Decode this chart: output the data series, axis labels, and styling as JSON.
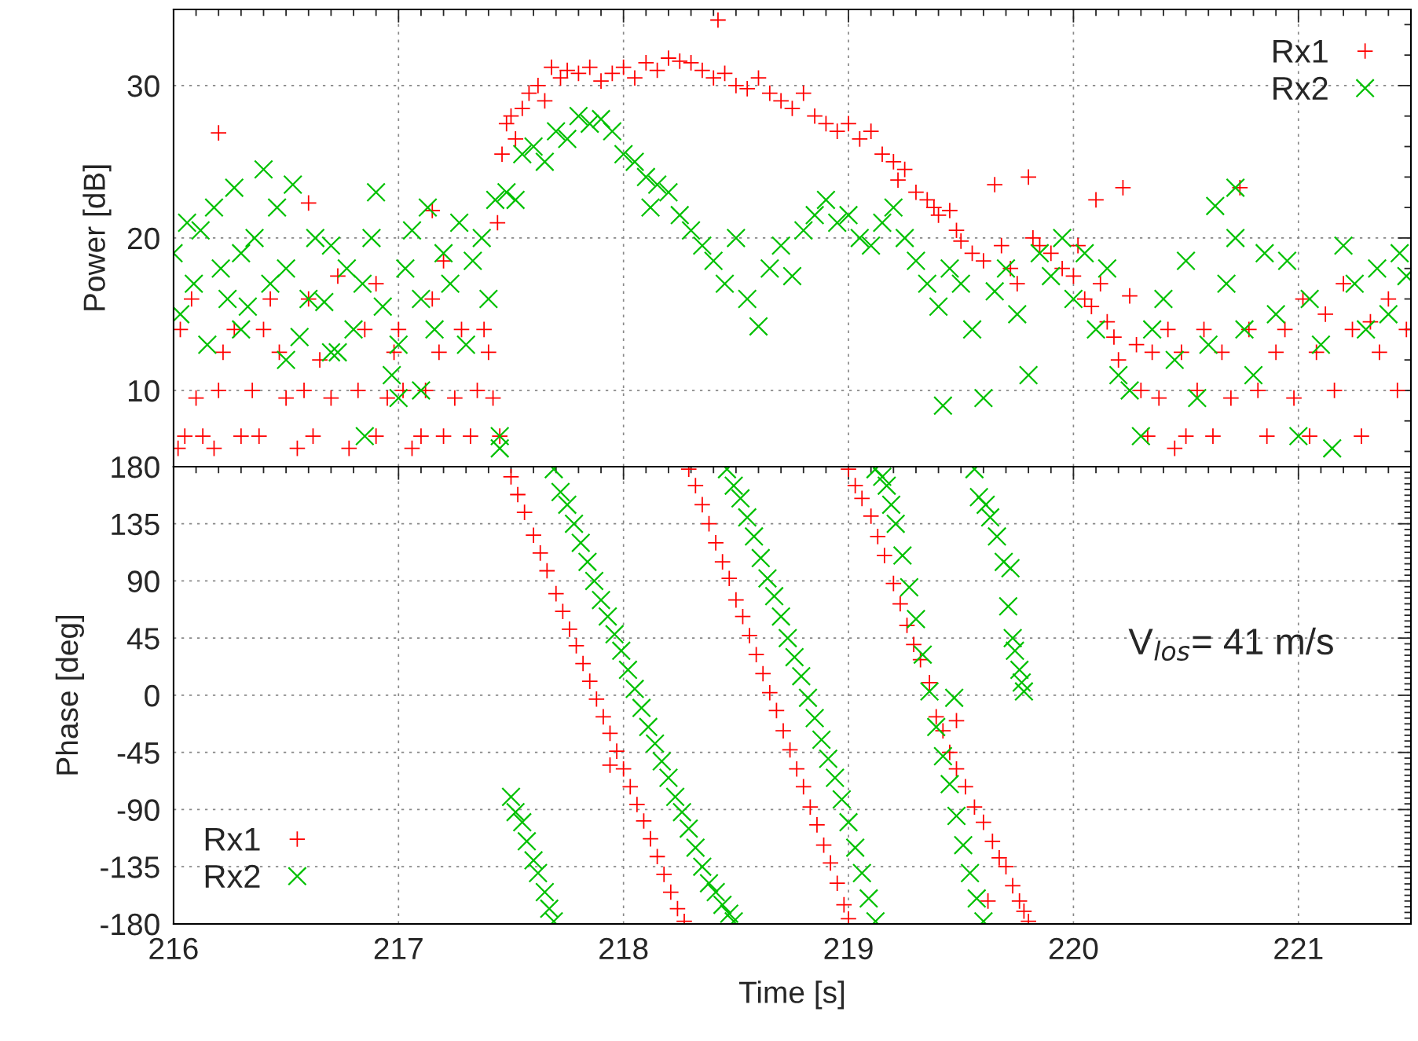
{
  "chart_data": [
    {
      "type": "scatter",
      "ylabel": "Power [dB]",
      "xlim": [
        216,
        221.5
      ],
      "xticks": [
        216,
        217,
        218,
        219,
        220,
        221
      ],
      "ylim": [
        5,
        35
      ],
      "yticks": [
        10,
        20,
        30
      ],
      "tick_labels": "y",
      "grid": true,
      "legend": "top right",
      "series": [
        {
          "name": "Rx1",
          "color": "#ff0000",
          "marker": "cross",
          "x": [
            216.02,
            216.05,
            216.1,
            216.13,
            216.18,
            216.2,
            216.22,
            216.27,
            216.3,
            216.35,
            216.38,
            216.43,
            216.47,
            216.5,
            216.55,
            216.58,
            216.62,
            216.65,
            216.7,
            216.73,
            216.78,
            216.82,
            216.85,
            216.9,
            216.95,
            216.98,
            217.02,
            217.06,
            217.1,
            217.12,
            217.15,
            217.18,
            217.2,
            217.25,
            217.28,
            217.32,
            217.35,
            217.38,
            217.4,
            217.42,
            217.45,
            216.03,
            216.08,
            216.4,
            216.6,
            217.0,
            216.2,
            216.6,
            217.15,
            216.9,
            217.2,
            217.44,
            217.46,
            217.48,
            217.5,
            217.52,
            217.55,
            217.58,
            217.62,
            217.65,
            217.68,
            217.72,
            217.75,
            217.8,
            217.85,
            217.9,
            217.95,
            218.0,
            218.05,
            218.1,
            218.15,
            218.2,
            218.25,
            218.3,
            218.35,
            218.4,
            218.42,
            218.45,
            218.5,
            218.55,
            218.6,
            218.65,
            218.7,
            218.75,
            218.8,
            218.85,
            218.9,
            218.95,
            219.0,
            219.05,
            219.1,
            219.15,
            219.2,
            219.22,
            219.25,
            219.3,
            219.35,
            219.38,
            219.4,
            219.45,
            219.48,
            219.5,
            219.55,
            219.6,
            219.65,
            219.68,
            219.72,
            219.75,
            219.8,
            219.82,
            219.85,
            219.9,
            219.95,
            220.0,
            220.02,
            220.05,
            220.08,
            220.1,
            220.12,
            220.15,
            220.18,
            220.2,
            220.22,
            220.25,
            220.28,
            220.3,
            220.33,
            220.35,
            220.38,
            220.42,
            220.45,
            220.48,
            220.5,
            220.55,
            220.58,
            220.62,
            220.66,
            220.7,
            220.74,
            220.78,
            220.82,
            220.86,
            220.9,
            220.94,
            220.98,
            221.02,
            221.05,
            221.08,
            221.12,
            221.16,
            221.2,
            221.24,
            221.28,
            221.32,
            221.36,
            221.4,
            221.44,
            221.48
          ],
          "values": [
            6.2,
            7,
            9.5,
            7,
            6.2,
            10,
            12.5,
            14,
            7,
            10,
            7,
            16,
            12.5,
            9.5,
            6.2,
            10,
            7,
            12,
            9.5,
            17.5,
            6.2,
            10,
            14,
            7,
            9.5,
            12.5,
            10,
            6.2,
            7,
            10,
            16,
            12.5,
            7,
            9.5,
            14,
            7,
            10,
            14,
            12.5,
            9.5,
            7,
            14,
            16,
            14,
            16,
            14,
            26.9,
            22.3,
            21.8,
            17,
            18.5,
            21,
            25.5,
            27.5,
            28,
            26.5,
            28.5,
            29.5,
            30,
            29,
            31.2,
            30.5,
            31,
            30.8,
            31.2,
            30.3,
            30.8,
            31.2,
            30.5,
            31.5,
            31,
            31.8,
            31.6,
            31.5,
            31,
            30.5,
            34.3,
            30.8,
            30,
            29.8,
            30.5,
            29.5,
            29,
            28.5,
            29.5,
            28,
            27.5,
            27,
            27.5,
            26.5,
            27,
            25.5,
            25,
            23.8,
            24.5,
            23,
            22.5,
            22,
            21.5,
            21.8,
            20.5,
            19.8,
            19,
            18.5,
            23.5,
            19.5,
            18,
            17,
            24,
            20,
            19.5,
            19,
            18,
            17.5,
            19.5,
            16,
            15.5,
            22.5,
            17,
            14.5,
            13.5,
            12,
            23.3,
            16.2,
            13,
            10,
            7,
            12.5,
            9.5,
            14,
            6.2,
            12.5,
            7,
            10,
            14,
            7,
            12.5,
            9.5,
            23.3,
            14,
            10,
            7,
            12.5,
            14,
            9.5,
            16,
            7,
            12.5,
            15,
            10,
            17,
            14,
            7,
            14.5,
            12.5,
            16,
            10,
            14
          ]
        },
        {
          "name": "Rx2",
          "color": "#00c000",
          "x": [
            216.0,
            216.03,
            216.06,
            216.09,
            216.12,
            216.15,
            216.18,
            216.21,
            216.24,
            216.27,
            216.3,
            216.33,
            216.36,
            216.4,
            216.43,
            216.46,
            216.5,
            216.53,
            216.56,
            216.6,
            216.63,
            216.67,
            216.7,
            216.73,
            216.77,
            216.8,
            216.84,
            216.88,
            216.9,
            216.93,
            216.97,
            217.0,
            217.03,
            217.06,
            217.1,
            217.13,
            217.16,
            217.2,
            217.23,
            217.27,
            217.3,
            217.33,
            217.37,
            217.4,
            217.43,
            217.45,
            217.45,
            216.85,
            217.1,
            216.5,
            216.3,
            217.0,
            216.7,
            217.48,
            217.52,
            217.55,
            217.6,
            217.65,
            217.7,
            217.75,
            217.8,
            217.85,
            217.9,
            217.95,
            218.0,
            218.05,
            218.1,
            218.12,
            218.15,
            218.2,
            218.25,
            218.3,
            218.35,
            218.4,
            218.45,
            218.5,
            218.55,
            218.6,
            218.65,
            218.7,
            218.75,
            218.8,
            218.85,
            218.9,
            218.95,
            219.0,
            219.05,
            219.1,
            219.15,
            219.2,
            219.25,
            219.3,
            219.35,
            219.4,
            219.42,
            219.45,
            219.5,
            219.55,
            219.6,
            219.65,
            219.7,
            219.75,
            219.8,
            219.85,
            219.9,
            219.95,
            220.0,
            220.05,
            220.1,
            220.15,
            220.2,
            220.25,
            220.3,
            220.35,
            220.4,
            220.45,
            220.5,
            220.55,
            220.6,
            220.63,
            220.68,
            220.72,
            220.76,
            220.8,
            220.85,
            220.9,
            220.95,
            221.0,
            221.05,
            221.1,
            221.15,
            221.2,
            221.25,
            221.3,
            221.35,
            221.4,
            221.45,
            221.48,
            220.72
          ],
          "values": [
            19,
            15,
            21,
            17,
            20.5,
            13,
            22,
            18,
            16,
            23.3,
            19,
            15.5,
            20,
            24.5,
            17,
            22,
            18,
            23.5,
            13.5,
            16,
            20,
            15.8,
            19.5,
            12.5,
            18,
            14,
            17,
            20,
            23,
            15.5,
            11,
            13,
            18,
            20.5,
            16,
            22,
            14,
            19,
            17,
            21,
            13,
            18.5,
            20,
            16,
            22.5,
            7,
            6.2,
            7,
            10,
            12,
            14,
            9.5,
            12.5,
            23,
            22.5,
            25.5,
            26,
            25,
            27,
            26.5,
            28,
            27.5,
            27.8,
            27,
            25.5,
            25,
            24,
            22,
            23.5,
            23,
            21.5,
            20.5,
            19.5,
            18.5,
            17,
            20,
            16,
            14.2,
            18,
            19.5,
            17.5,
            20.5,
            21.5,
            22.5,
            21,
            21.5,
            20,
            19.5,
            21,
            22,
            20,
            18.5,
            17,
            15.5,
            9,
            18,
            17,
            14,
            9.5,
            16.5,
            18,
            15,
            11,
            19,
            17.5,
            20,
            16,
            19,
            14,
            18,
            11,
            10,
            7,
            14,
            16,
            12,
            18.5,
            9.5,
            13,
            22.1,
            17,
            20,
            14,
            11,
            19,
            15,
            18.5,
            7,
            16,
            13,
            6.2,
            19.5,
            17,
            14,
            18,
            15,
            19,
            17.5,
            23.3
          ]
        }
      ]
    },
    {
      "type": "scatter",
      "xlabel": "Time [s]",
      "ylabel": "Phase [deg]",
      "xlim": [
        216,
        221.5
      ],
      "xticks": [
        216,
        217,
        218,
        219,
        220,
        221
      ],
      "ylim": [
        -180,
        180
      ],
      "yticks": [
        -180,
        -135,
        -90,
        -45,
        0,
        45,
        90,
        135,
        180
      ],
      "grid": true,
      "legend": "bottom left",
      "annotations": [
        "V$_{los}$= 41 m/s"
      ],
      "series": [
        {
          "name": "Rx1",
          "color": "#ff0000",
          "marker": "cross",
          "x": [
            217.5,
            217.53,
            217.56,
            217.6,
            217.63,
            217.66,
            217.7,
            217.73,
            217.76,
            217.79,
            217.82,
            217.85,
            217.88,
            217.91,
            217.94,
            217.97,
            218.0,
            218.03,
            218.06,
            218.09,
            218.12,
            218.15,
            218.18,
            218.21,
            218.24,
            218.27,
            217.94,
            218.29,
            218.32,
            218.35,
            218.38,
            218.41,
            218.44,
            218.47,
            218.5,
            218.53,
            218.56,
            218.59,
            218.62,
            218.65,
            218.68,
            218.71,
            218.74,
            218.77,
            218.8,
            218.83,
            218.86,
            218.89,
            218.92,
            218.95,
            218.98,
            219.0,
            219.0,
            219.03,
            219.06,
            219.1,
            219.13,
            219.16,
            219.2,
            219.23,
            219.26,
            219.29,
            219.32,
            219.36,
            219.39,
            219.42,
            219.45,
            219.48,
            219.52,
            219.56,
            219.6,
            219.64,
            219.67,
            219.7,
            219.73,
            219.76,
            219.78,
            219.8,
            219.62,
            219.48
          ],
          "values": [
            172,
            158,
            144,
            126,
            112,
            98,
            80,
            66,
            52,
            39,
            25,
            11,
            -3,
            -17,
            -30,
            -44,
            -58,
            -72,
            -86,
            -99,
            -113,
            -127,
            -141,
            -155,
            -168,
            -178,
            -55,
            178,
            165,
            150,
            135,
            120,
            105,
            92,
            75,
            62,
            47,
            32,
            17,
            2,
            -12,
            -28,
            -43,
            -58,
            -72,
            -88,
            -102,
            -118,
            -132,
            -148,
            -165,
            -176,
            178,
            165,
            155,
            141,
            125,
            110,
            88,
            72,
            55,
            40,
            28,
            10,
            -17,
            -28,
            -45,
            -58,
            -72,
            -88,
            -100,
            -115,
            -128,
            -135,
            -150,
            -162,
            -170,
            -178,
            -162,
            -20
          ]
        },
        {
          "name": "Rx2",
          "color": "#00c000",
          "x": [
            217.5,
            217.52,
            217.55,
            217.57,
            217.6,
            217.62,
            217.65,
            217.67,
            217.69,
            217.69,
            217.72,
            217.75,
            217.78,
            217.81,
            217.84,
            217.87,
            217.9,
            217.93,
            217.96,
            217.99,
            218.02,
            218.05,
            218.08,
            218.11,
            218.14,
            218.17,
            218.2,
            218.23,
            218.26,
            218.29,
            218.32,
            218.35,
            218.38,
            218.41,
            218.44,
            218.47,
            218.49,
            218.46,
            218.49,
            218.52,
            218.55,
            218.58,
            218.61,
            218.64,
            218.67,
            218.7,
            218.73,
            218.76,
            218.79,
            218.82,
            218.85,
            218.88,
            218.91,
            218.94,
            218.97,
            219.0,
            219.03,
            219.06,
            219.09,
            219.12,
            219.12,
            219.15,
            219.17,
            219.19,
            219.21,
            219.24,
            219.27,
            219.3,
            219.33,
            219.36,
            219.39,
            219.42,
            219.45,
            219.48,
            219.51,
            219.54,
            219.57,
            219.6,
            219.47,
            219.56,
            219.58,
            219.61,
            219.63,
            219.66,
            219.69,
            219.72,
            219.71,
            219.73,
            219.74,
            219.76,
            219.77,
            219.78
          ],
          "values": [
            -80,
            -92,
            -100,
            -115,
            -130,
            -140,
            -155,
            -168,
            -178,
            178,
            160,
            150,
            135,
            120,
            105,
            90,
            75,
            62,
            48,
            35,
            20,
            5,
            -10,
            -25,
            -38,
            -52,
            -65,
            -80,
            -92,
            -105,
            -120,
            -135,
            -148,
            -155,
            -165,
            -172,
            -178,
            178,
            165,
            155,
            140,
            125,
            108,
            92,
            78,
            62,
            45,
            30,
            15,
            -2,
            -18,
            -35,
            -50,
            -65,
            -82,
            -100,
            -120,
            -140,
            -160,
            -178,
            178,
            172,
            165,
            150,
            135,
            110,
            85,
            60,
            32,
            3,
            -25,
            -48,
            -70,
            -95,
            -118,
            -140,
            -160,
            -178,
            -2,
            178,
            156,
            150,
            140,
            125,
            105,
            100,
            70,
            45,
            35,
            20,
            10,
            3
          ]
        }
      ]
    }
  ]
}
